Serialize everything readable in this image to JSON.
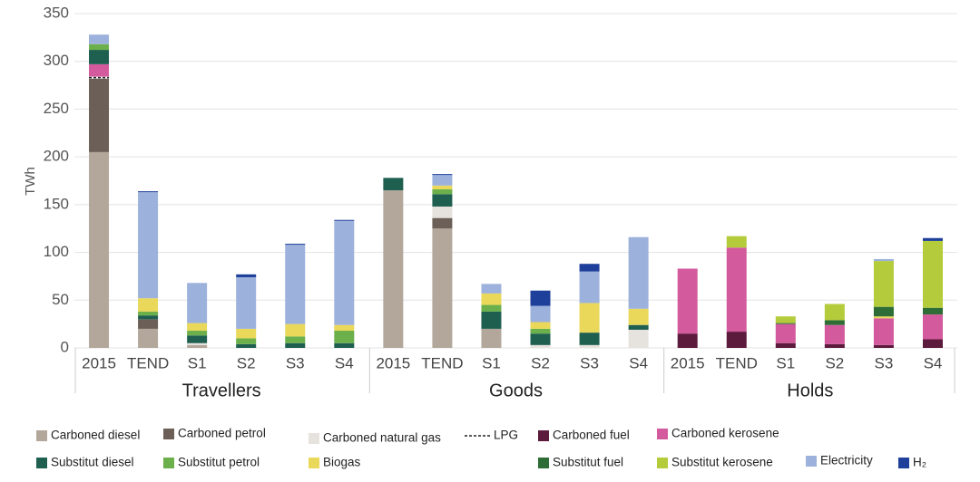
{
  "chart_data": {
    "type": "stacked-bar",
    "y_label": "TWh",
    "categories": [
      "2015",
      "TEND",
      "S1",
      "S2",
      "S3",
      "S4",
      "2015",
      "TEND",
      "S1",
      "S2",
      "S3",
      "S4",
      "2015",
      "TEND",
      "S1",
      "S2",
      "S3",
      "S4"
    ],
    "groups": [
      "Travellers",
      "Goods",
      "Holds"
    ],
    "ylim": [
      0,
      350
    ],
    "yticks": [
      0,
      50,
      100,
      150,
      200,
      250,
      300,
      350
    ],
    "grid": true,
    "series": [
      {
        "name": "Carboned diesel",
        "color": "#b3a79b",
        "values": [
          205,
          20,
          3,
          0,
          0,
          0,
          165,
          125,
          20,
          0,
          0,
          0,
          0,
          0,
          0,
          0,
          0,
          0
        ]
      },
      {
        "name": "Carboned petrol",
        "color": "#6b5f57",
        "values": [
          77,
          10,
          0,
          0,
          0,
          0,
          0,
          11,
          0,
          0,
          0,
          0,
          0,
          0,
          0,
          0,
          0,
          0
        ]
      },
      {
        "name": "Carboned natural gas",
        "color": "#e6e3de",
        "values": [
          0,
          0,
          2,
          0,
          0,
          0,
          0,
          12,
          0,
          3,
          3,
          19,
          0,
          0,
          0,
          0,
          0,
          0
        ]
      },
      {
        "name": "LPG",
        "color": "#ffffff",
        "style": "dashed",
        "values": [
          2,
          0,
          0,
          0,
          0,
          0,
          0,
          0,
          0,
          0,
          0,
          0,
          0,
          0,
          0,
          0,
          0,
          0
        ]
      },
      {
        "name": "Carboned fuel",
        "color": "#5c1a3d",
        "values": [
          0,
          0,
          0,
          0,
          0,
          0,
          0,
          0,
          0,
          0,
          0,
          0,
          15,
          17,
          5,
          4,
          3,
          9
        ]
      },
      {
        "name": "Carboned kerosene",
        "color": "#d35a9d",
        "values": [
          13,
          0,
          0,
          0,
          0,
          0,
          0,
          0,
          0,
          0,
          0,
          0,
          68,
          88,
          20,
          20,
          28,
          26
        ]
      },
      {
        "name": "Substitut diesel",
        "color": "#1f5f50",
        "values": [
          15,
          4,
          8,
          4,
          5,
          5,
          13,
          13,
          18,
          12,
          13,
          5,
          0,
          0,
          0,
          0,
          0,
          0
        ]
      },
      {
        "name": "Substitut petrol",
        "color": "#6bb04b",
        "values": [
          6,
          4,
          5,
          6,
          7,
          13,
          0,
          5,
          7,
          5,
          0,
          0,
          0,
          0,
          0,
          0,
          0,
          0
        ]
      },
      {
        "name": "Biogas",
        "color": "#e9d85a",
        "values": [
          0,
          14,
          8,
          10,
          13,
          6,
          0,
          4,
          12,
          7,
          31,
          17,
          0,
          0,
          0,
          0,
          2,
          0
        ]
      },
      {
        "name": "Substitut fuel",
        "color": "#2e6d35",
        "values": [
          0,
          0,
          0,
          0,
          0,
          0,
          0,
          0,
          0,
          0,
          0,
          0,
          0,
          0,
          1,
          5,
          10,
          7
        ]
      },
      {
        "name": "Substitut kerosene",
        "color": "#b4cc3c",
        "values": [
          0,
          0,
          0,
          0,
          0,
          0,
          0,
          0,
          0,
          0,
          0,
          0,
          0,
          12,
          7,
          17,
          48,
          70
        ]
      },
      {
        "name": "Electricity",
        "color": "#9cb1dc",
        "values": [
          10,
          111,
          42,
          54,
          83,
          109,
          0,
          11,
          10,
          17,
          33,
          75,
          0,
          0,
          0,
          0,
          2,
          0
        ]
      },
      {
        "name": "H₂",
        "color": "#1e3f9a",
        "values": [
          0,
          1,
          0,
          3,
          1,
          1,
          0,
          1,
          0,
          16,
          8,
          0,
          0,
          0,
          0,
          0,
          0,
          3
        ]
      }
    ]
  }
}
